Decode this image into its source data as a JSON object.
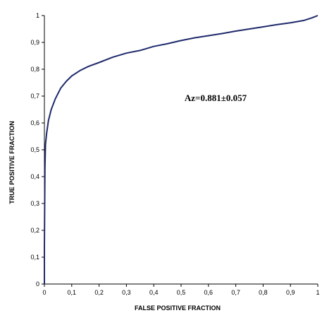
{
  "chart_data": {
    "type": "line",
    "title": "",
    "xlabel": "FALSE POSITIVE FRACTION",
    "ylabel": "TRUE POSITIVE FRACTION",
    "xlim": [
      0,
      1
    ],
    "ylim": [
      0,
      1
    ],
    "grid": false,
    "legend": "none",
    "x_ticks": [
      "0",
      "0,1",
      "0,2",
      "0,3",
      "0,4",
      "0,5",
      "0,6",
      "0,7",
      "0,8",
      "0,9",
      "1"
    ],
    "y_ticks": [
      "0",
      "0,1",
      "0,2",
      "0,3",
      "0,4",
      "0,5",
      "0,6",
      "0,7",
      "0,8",
      "0,9",
      "1"
    ],
    "annotation": "Az=0.881±0.057",
    "line_color": "#1f2a6b",
    "series": [
      {
        "name": "",
        "points": [
          [
            0,
            0
          ],
          [
            0,
            0.14
          ],
          [
            0.002,
            0.43
          ],
          [
            0.004,
            0.52
          ],
          [
            0.008,
            0.56
          ],
          [
            0.015,
            0.61
          ],
          [
            0.025,
            0.65
          ],
          [
            0.04,
            0.69
          ],
          [
            0.06,
            0.73
          ],
          [
            0.08,
            0.755
          ],
          [
            0.1,
            0.775
          ],
          [
            0.13,
            0.795
          ],
          [
            0.16,
            0.81
          ],
          [
            0.2,
            0.825
          ],
          [
            0.25,
            0.845
          ],
          [
            0.3,
            0.86
          ],
          [
            0.35,
            0.87
          ],
          [
            0.4,
            0.885
          ],
          [
            0.45,
            0.895
          ],
          [
            0.5,
            0.907
          ],
          [
            0.55,
            0.917
          ],
          [
            0.6,
            0.925
          ],
          [
            0.65,
            0.933
          ],
          [
            0.7,
            0.942
          ],
          [
            0.75,
            0.95
          ],
          [
            0.8,
            0.958
          ],
          [
            0.85,
            0.966
          ],
          [
            0.9,
            0.973
          ],
          [
            0.95,
            0.982
          ],
          [
            0.98,
            0.992
          ],
          [
            1,
            1
          ]
        ]
      }
    ]
  }
}
